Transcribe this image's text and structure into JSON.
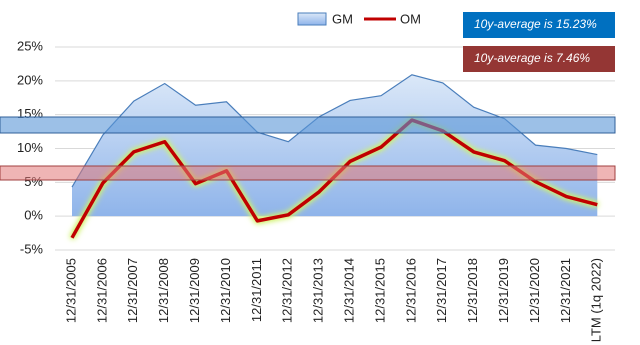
{
  "chart_data": {
    "type": "area-line",
    "categories": [
      "12/31/2005",
      "12/31/2006",
      "12/31/2007",
      "12/31/2008",
      "12/31/2009",
      "12/31/2010",
      "12/31/2011",
      "12/31/2012",
      "12/31/2013",
      "12/31/2014",
      "12/31/2015",
      "12/31/2016",
      "12/31/2017",
      "12/31/2018",
      "12/31/2019",
      "12/31/2020",
      "12/31/2021",
      "LTM (1q 2022)"
    ],
    "series": [
      {
        "name": "GM",
        "color": "#4a7ebb",
        "values": [
          4.3,
          12,
          17,
          19.6,
          16.4,
          16.9,
          12.4,
          11,
          14.7,
          17.1,
          17.8,
          20.9,
          19.7,
          16.1,
          14.4,
          10.5,
          10,
          9.1
        ]
      },
      {
        "name": "OM",
        "color": "#c00000",
        "values": [
          -3.2,
          4.9,
          9.5,
          11,
          4.8,
          6.7,
          -0.7,
          0.2,
          3.6,
          8.1,
          10.2,
          14.2,
          12.6,
          9.5,
          8.2,
          5.1,
          2.9,
          1.7
        ]
      }
    ],
    "ylim": [
      -5,
      25
    ],
    "yticks": [
      {
        "value": -5,
        "label": "-5%"
      },
      {
        "value": 0,
        "label": "0%"
      },
      {
        "value": 5,
        "label": "5%"
      },
      {
        "value": 10,
        "label": "10%"
      },
      {
        "value": 15,
        "label": "15%"
      },
      {
        "value": 20,
        "label": "20%"
      },
      {
        "value": 25,
        "label": "25%"
      }
    ],
    "annotations": [
      "10y-average is 15.23%",
      "10y-average is 7.46%"
    ]
  }
}
